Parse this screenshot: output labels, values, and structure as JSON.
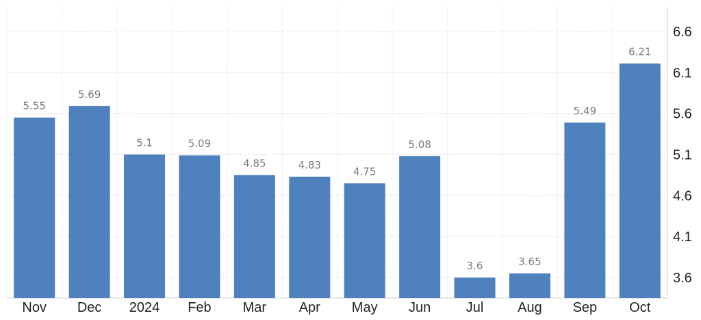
{
  "chart_data": {
    "type": "bar",
    "categories": [
      "Nov",
      "Dec",
      "2024",
      "Feb",
      "Mar",
      "Apr",
      "May",
      "Jun",
      "Jul",
      "Aug",
      "Sep",
      "Oct"
    ],
    "values": [
      5.55,
      5.69,
      5.1,
      5.09,
      4.85,
      4.83,
      4.75,
      5.08,
      3.6,
      3.65,
      5.49,
      6.21
    ],
    "value_labels": [
      "5.55",
      "5.69",
      "5.1",
      "5.09",
      "4.85",
      "4.83",
      "4.75",
      "5.08",
      "3.6",
      "3.65",
      "5.49",
      "6.21"
    ],
    "title": "",
    "xlabel": "",
    "ylabel": "",
    "y_ticks": [
      "3.6",
      "4.1",
      "4.6",
      "5.1",
      "5.6",
      "6.1",
      "6.6"
    ],
    "ylim": [
      3.35,
      6.9
    ],
    "grid": true,
    "y_axis_position": "right",
    "bar_color": "#4e81bd",
    "gridline_color": "#e3e3e3",
    "label_color": "#7a7a7a"
  }
}
